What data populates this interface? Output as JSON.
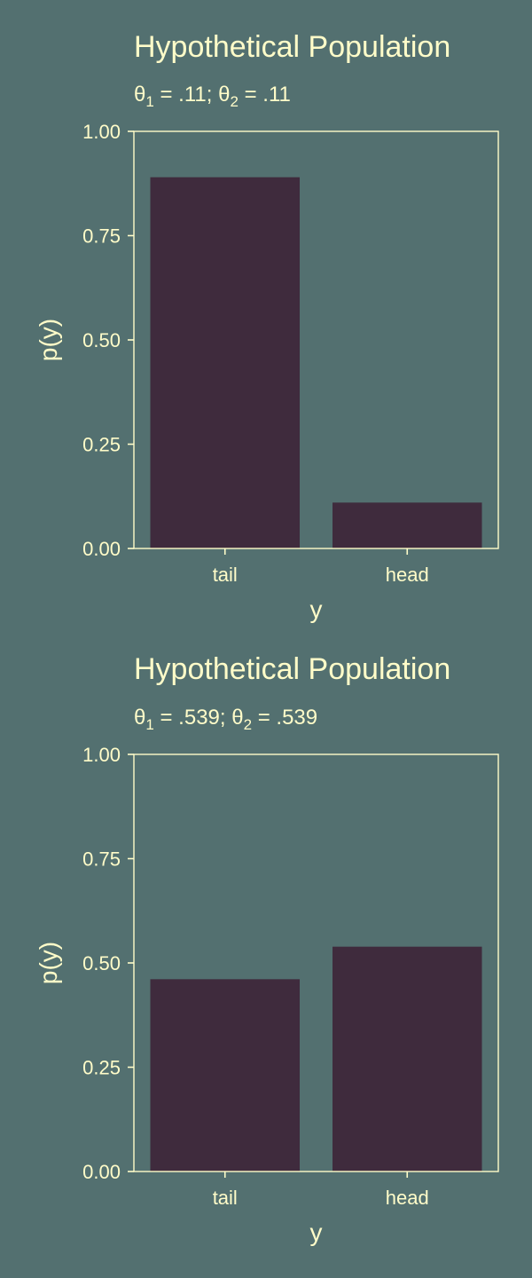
{
  "colors": {
    "background": "#537070",
    "panel_border": "#FFFCC9",
    "text": "#FFFCC9",
    "bar_fill": "#3F2B3D"
  },
  "chart_data": [
    {
      "type": "bar",
      "title": "Hypothetical Population",
      "subtitle": {
        "sym1": "θ",
        "sub1": "1",
        "val1": " = .11; ",
        "sym2": "θ",
        "sub2": "2",
        "val2": " = .11"
      },
      "categories": [
        "tail",
        "head"
      ],
      "values": [
        0.89,
        0.11
      ],
      "xlabel": "y",
      "ylabel": "p(y)",
      "ylim": [
        0,
        1
      ],
      "yticks": [
        "0.00",
        "0.25",
        "0.50",
        "0.75",
        "1.00"
      ],
      "grid": false,
      "legend": "none"
    },
    {
      "type": "bar",
      "title": "Hypothetical Population",
      "subtitle": {
        "sym1": "θ",
        "sub1": "1",
        "val1": " = .539; ",
        "sym2": "θ",
        "sub2": "2",
        "val2": " = .539"
      },
      "categories": [
        "tail",
        "head"
      ],
      "values": [
        0.461,
        0.539
      ],
      "xlabel": "y",
      "ylabel": "p(y)",
      "ylim": [
        0,
        1
      ],
      "yticks": [
        "0.00",
        "0.25",
        "0.50",
        "0.75",
        "1.00"
      ],
      "grid": false,
      "legend": "none"
    }
  ]
}
